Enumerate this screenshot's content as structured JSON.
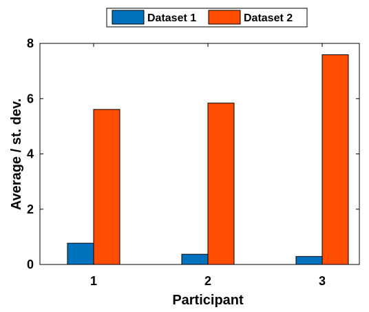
{
  "chart_data": {
    "type": "bar",
    "title": "",
    "xlabel": "Participant",
    "ylabel": "Average / st. dev.",
    "categories": [
      "1",
      "2",
      "3"
    ],
    "series": [
      {
        "name": "Dataset 1",
        "color": "#0072bd",
        "values": [
          0.77,
          0.37,
          0.29
        ]
      },
      {
        "name": "Dataset 2",
        "color": "#ff4d00",
        "values": [
          5.61,
          5.84,
          7.59
        ]
      }
    ],
    "ylim": [
      0,
      8
    ],
    "yticks": [
      0,
      2,
      4,
      6,
      8
    ],
    "grid": false,
    "legend_position": "top-outside"
  }
}
